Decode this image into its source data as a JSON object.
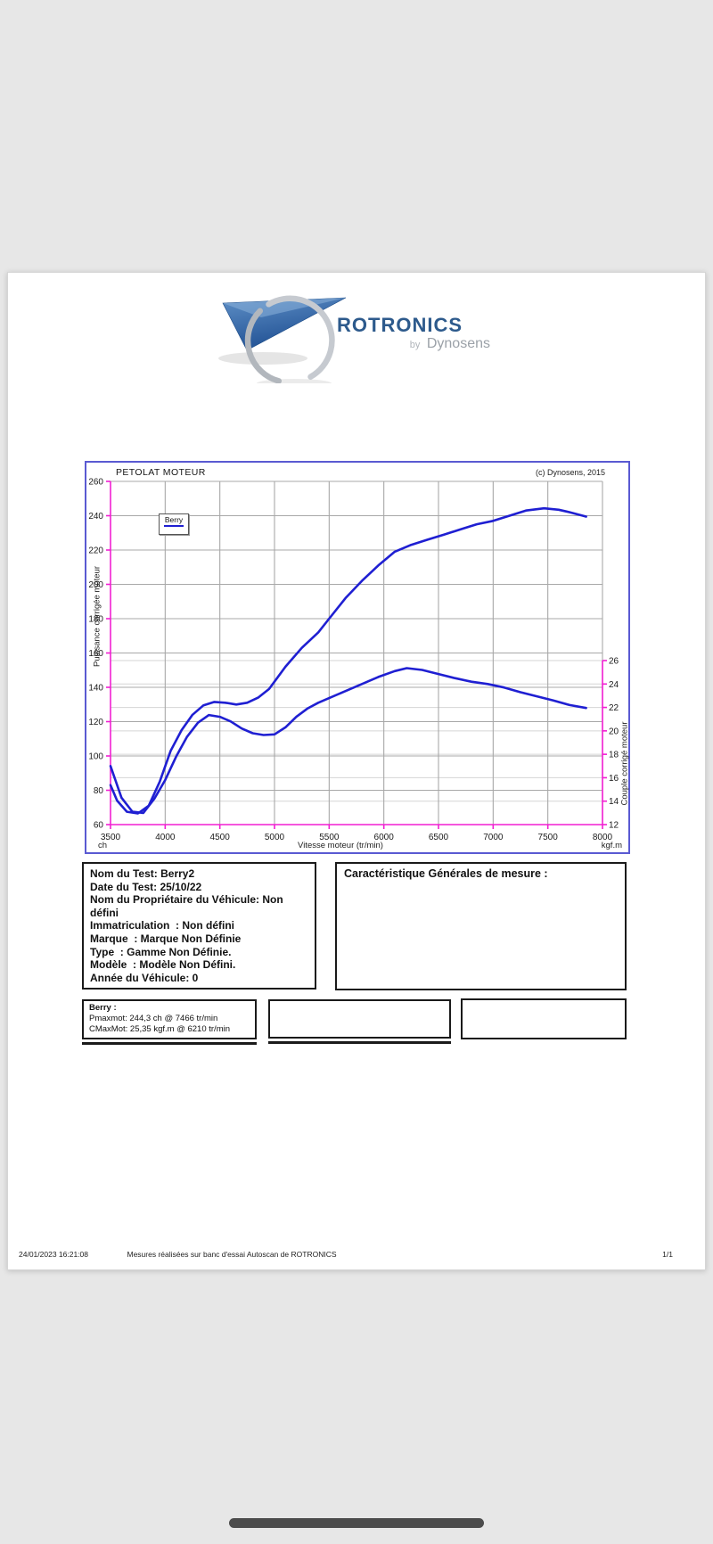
{
  "logo": {
    "brand": "ROTRONICS",
    "by": "by",
    "subbrand": "Dynosens",
    "brand_color": "#2d5a8c",
    "sub_color": "#9ba1a8"
  },
  "chart_data": {
    "type": "line",
    "title": "PETOLAT MOTEUR",
    "copyright": "(c) Dynosens, 2015",
    "legend": {
      "label": "Berry"
    },
    "x_axis": {
      "label": "Vitesse moteur (tr/min)",
      "min": 3500,
      "max": 8000,
      "tick_step": 500
    },
    "y_left": {
      "label": "Puissance corrigée moteur",
      "unit": "ch",
      "min": 60,
      "max": 260,
      "tick_step": 20
    },
    "y_right": {
      "label": "Couple corrigé moteur",
      "unit": "kgf.m",
      "min": 12,
      "max": 26,
      "tick_step": 2
    },
    "grid": true,
    "colors": {
      "axis": "#f21fd2",
      "grid_major": "#a8a8a8",
      "grid_minor": "#d5d5d5",
      "curve": "#1f1fd2",
      "border": "#5a5ad2",
      "tick_text": "#1a1a1a"
    },
    "series": [
      {
        "name": "Berry — Puissance corrigée moteur (ch)",
        "axis": "left",
        "color": "#1f1fd2",
        "points": [
          [
            3500,
            83
          ],
          [
            3560,
            74
          ],
          [
            3650,
            67.5
          ],
          [
            3750,
            66.5
          ],
          [
            3850,
            71
          ],
          [
            3950,
            85
          ],
          [
            4050,
            103
          ],
          [
            4150,
            115
          ],
          [
            4250,
            124
          ],
          [
            4350,
            129.5
          ],
          [
            4450,
            131.5
          ],
          [
            4550,
            131
          ],
          [
            4650,
            130
          ],
          [
            4750,
            131
          ],
          [
            4850,
            134
          ],
          [
            4950,
            139
          ],
          [
            5100,
            152
          ],
          [
            5250,
            163
          ],
          [
            5400,
            172
          ],
          [
            5500,
            180
          ],
          [
            5650,
            192
          ],
          [
            5800,
            202
          ],
          [
            5950,
            211
          ],
          [
            6100,
            219
          ],
          [
            6250,
            223
          ],
          [
            6400,
            226
          ],
          [
            6550,
            229
          ],
          [
            6700,
            232
          ],
          [
            6850,
            235
          ],
          [
            7000,
            237
          ],
          [
            7150,
            240
          ],
          [
            7300,
            243
          ],
          [
            7466,
            244.3
          ],
          [
            7600,
            243.5
          ],
          [
            7700,
            242
          ],
          [
            7850,
            239.5
          ]
        ]
      },
      {
        "name": "Berry — Couple corrigé moteur (kgf.m)",
        "axis": "right",
        "color": "#1f1fd2",
        "points": [
          [
            3500,
            17
          ],
          [
            3600,
            14.3
          ],
          [
            3700,
            13.1
          ],
          [
            3800,
            13
          ],
          [
            3900,
            14.2
          ],
          [
            4000,
            15.8
          ],
          [
            4100,
            17.8
          ],
          [
            4200,
            19.5
          ],
          [
            4300,
            20.7
          ],
          [
            4400,
            21.35
          ],
          [
            4500,
            21.2
          ],
          [
            4600,
            20.8
          ],
          [
            4700,
            20.2
          ],
          [
            4800,
            19.8
          ],
          [
            4900,
            19.65
          ],
          [
            5000,
            19.7
          ],
          [
            5100,
            20.3
          ],
          [
            5200,
            21.2
          ],
          [
            5300,
            21.9
          ],
          [
            5400,
            22.4
          ],
          [
            5500,
            22.8
          ],
          [
            5650,
            23.4
          ],
          [
            5800,
            24
          ],
          [
            5950,
            24.6
          ],
          [
            6100,
            25.1
          ],
          [
            6210,
            25.35
          ],
          [
            6350,
            25.2
          ],
          [
            6500,
            24.85
          ],
          [
            6650,
            24.5
          ],
          [
            6800,
            24.2
          ],
          [
            6950,
            24
          ],
          [
            7100,
            23.7
          ],
          [
            7250,
            23.3
          ],
          [
            7400,
            22.95
          ],
          [
            7550,
            22.6
          ],
          [
            7700,
            22.2
          ],
          [
            7850,
            21.95
          ]
        ]
      }
    ]
  },
  "info_box": {
    "lines": [
      "Nom du Test: Berry2",
      "Date du Test: 25/10/22",
      "Nom du Propriétaire du Véhicule: Non défini",
      "Immatriculation  : Non défini",
      "Marque  : Marque Non Définie",
      "Type  : Gamme Non Définie.",
      "Modèle  : Modèle Non Défini.",
      "Année du Véhicule: 0"
    ]
  },
  "caracteristics_box": {
    "title": "Caractéristique Générales de mesure :"
  },
  "results_box": {
    "title": "Berry :",
    "lines": [
      "Pmaxmot: 244,3 ch @ 7466 tr/min",
      "CMaxMot: 25,35 kgf.m @ 6210 tr/min"
    ]
  },
  "footer": {
    "datetime": "24/01/2023 16:21:08",
    "center": "Mesures réalisées sur banc d'essai Autoscan de ROTRONICS",
    "page": "1/1"
  }
}
